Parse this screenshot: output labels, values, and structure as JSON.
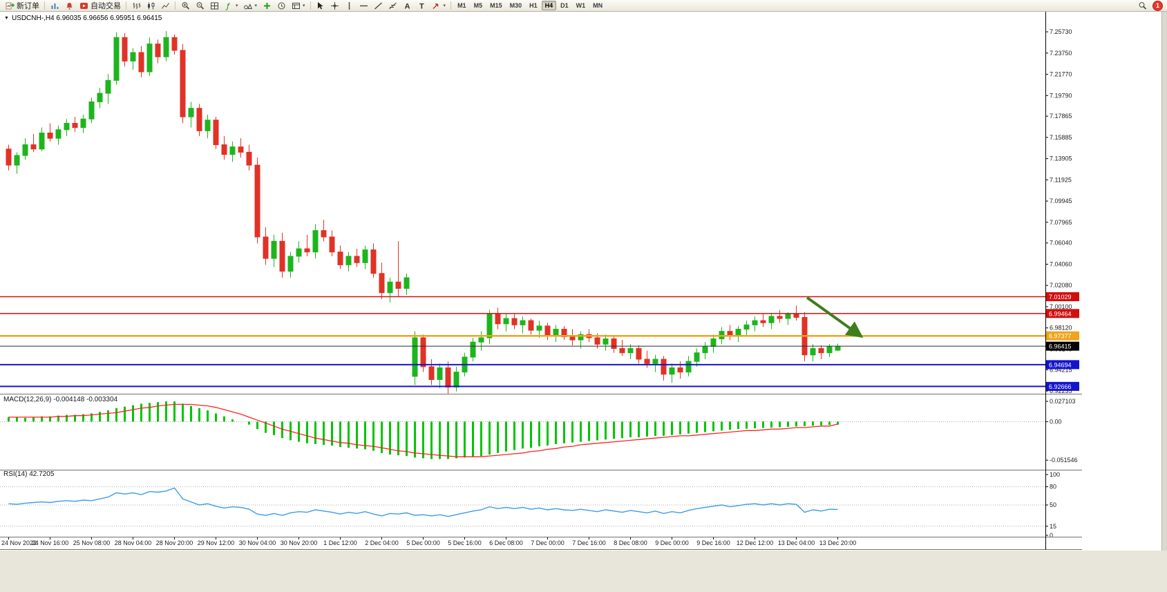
{
  "toolbar": {
    "new_order_label": "新订单",
    "auto_trading_label": "自动交易",
    "timeframes": [
      "M1",
      "M5",
      "M15",
      "M30",
      "H1",
      "H4",
      "D1",
      "W1",
      "MN"
    ],
    "active_timeframe": "H4",
    "notification_count": "1"
  },
  "chart": {
    "symbol": "USDCNH-",
    "period": "H4",
    "info_line": "USDCNH-,H4  6.96035 6.96656 6.95951 6.96415",
    "ohlc": {
      "open": "6.96035",
      "high": "6.96656",
      "low": "6.95951",
      "close": "6.96415"
    }
  },
  "colors": {
    "bull": "#1db51d",
    "bear": "#e03226",
    "macd_hist": "#00c400",
    "macd_signal": "#ff2222",
    "rsi_line": "#3d9be9",
    "hline_red": "#d20f0f",
    "hline_orange": "#efa41b",
    "hline_blue": "#1414cc",
    "price_badge_bg": "#000000",
    "arrow_green": "#3f7d1d",
    "axis_text": "#1b1b1b",
    "grid_dotted": "#a8a8a8"
  },
  "chart_data": [
    {
      "type": "candlestick",
      "title": "USDCNH-,H4",
      "label": "USDCNH-,H4  6.96035 6.96656 6.95951 6.96415",
      "ylim": [
        6.9198,
        7.2612
      ],
      "y_ticks": [
        7.2573,
        7.2375,
        7.2177,
        7.1979,
        7.17865,
        7.15885,
        7.13905,
        7.11925,
        7.09945,
        7.07965,
        7.0604,
        7.0406,
        7.0208,
        7.001,
        6.9812,
        6.9614,
        6.94215,
        6.92235
      ],
      "x_label_step": 5,
      "x_labels": [
        "24 Nov 2022",
        "24 Nov 16:00",
        "25 Nov 08:00",
        "28 Nov 04:00",
        "28 Nov 20:00",
        "29 Nov 12:00",
        "30 Nov 04:00",
        "30 Nov 20:00",
        "1 Dec 12:00",
        "2 Dec 04:00",
        "5 Dec 00:00",
        "5 Dec 16:00",
        "6 Dec 08:00",
        "7 Dec 00:00",
        "7 Dec 16:00",
        "8 Dec 08:00",
        "9 Dec 00:00",
        "9 Dec 16:00",
        "12 Dec 12:00",
        "13 Dec 04:00",
        "13 Dec 20:00"
      ],
      "hlines": [
        {
          "value": 7.01029,
          "label": "7.01029",
          "color": "#d20f0f",
          "width": 1.5
        },
        {
          "value": 6.99464,
          "label": "6.99464",
          "color": "#d20f0f",
          "width": 1.5
        },
        {
          "value": 6.97377,
          "label": "6.97377",
          "color": "#efa41b",
          "width": 2.5
        },
        {
          "value": 6.94694,
          "label": "6.94694",
          "color": "#1414cc",
          "width": 2
        },
        {
          "value": 6.92666,
          "label": "6.92666",
          "color": "#1414cc",
          "width": 2
        }
      ],
      "price_line": {
        "value": 6.96415,
        "label": "6.96415",
        "color": "#000000"
      },
      "arrow": {
        "bar_from": 96.3,
        "price_from": 7.0095,
        "bar_to": 102.8,
        "price_to": 6.9735,
        "color": "#3f7d1d",
        "width": 4
      },
      "candles": [
        [
          7.148,
          7.152,
          7.128,
          7.133
        ],
        [
          7.133,
          7.145,
          7.125,
          7.142
        ],
        [
          7.142,
          7.158,
          7.138,
          7.152
        ],
        [
          7.152,
          7.162,
          7.145,
          7.148
        ],
        [
          7.148,
          7.168,
          7.146,
          7.163
        ],
        [
          7.163,
          7.172,
          7.155,
          7.158
        ],
        [
          7.158,
          7.17,
          7.152,
          7.166
        ],
        [
          7.166,
          7.176,
          7.16,
          7.172
        ],
        [
          7.172,
          7.178,
          7.164,
          7.168
        ],
        [
          7.168,
          7.18,
          7.163,
          7.176
        ],
        [
          7.176,
          7.196,
          7.172,
          7.192
        ],
        [
          7.192,
          7.205,
          7.186,
          7.2
        ],
        [
          7.2,
          7.218,
          7.19,
          7.212
        ],
        [
          7.212,
          7.257,
          7.208,
          7.252
        ],
        [
          7.252,
          7.256,
          7.225,
          7.23
        ],
        [
          7.23,
          7.242,
          7.222,
          7.238
        ],
        [
          7.238,
          7.244,
          7.215,
          7.22
        ],
        [
          7.22,
          7.252,
          7.216,
          7.246
        ],
        [
          7.246,
          7.25,
          7.228,
          7.234
        ],
        [
          7.234,
          7.258,
          7.23,
          7.252
        ],
        [
          7.252,
          7.255,
          7.236,
          7.24
        ],
        [
          7.24,
          7.246,
          7.172,
          7.178
        ],
        [
          7.178,
          7.192,
          7.168,
          7.186
        ],
        [
          7.186,
          7.19,
          7.16,
          7.165
        ],
        [
          7.165,
          7.18,
          7.158,
          7.175
        ],
        [
          7.175,
          7.178,
          7.148,
          7.152
        ],
        [
          7.152,
          7.16,
          7.138,
          7.143
        ],
        [
          7.143,
          7.155,
          7.136,
          7.15
        ],
        [
          7.15,
          7.158,
          7.14,
          7.145
        ],
        [
          7.145,
          7.152,
          7.128,
          7.133
        ],
        [
          7.133,
          7.14,
          7.06,
          7.066
        ],
        [
          7.066,
          7.075,
          7.04,
          7.046
        ],
        [
          7.046,
          7.068,
          7.038,
          7.062
        ],
        [
          7.062,
          7.07,
          7.028,
          7.034
        ],
        [
          7.034,
          7.052,
          7.028,
          7.048
        ],
        [
          7.048,
          7.062,
          7.042,
          7.055
        ],
        [
          7.055,
          7.068,
          7.048,
          7.052
        ],
        [
          7.052,
          7.078,
          7.046,
          7.072
        ],
        [
          7.072,
          7.082,
          7.062,
          7.066
        ],
        [
          7.066,
          7.072,
          7.048,
          7.052
        ],
        [
          7.052,
          7.058,
          7.036,
          7.04
        ],
        [
          7.04,
          7.052,
          7.034,
          7.048
        ],
        [
          7.048,
          7.055,
          7.038,
          7.042
        ],
        [
          7.042,
          7.058,
          7.036,
          7.054
        ],
        [
          7.054,
          7.06,
          7.028,
          7.032
        ],
        [
          7.032,
          7.042,
          7.008,
          7.014
        ],
        [
          7.014,
          7.028,
          7.005,
          7.024
        ],
        [
          7.024,
          7.062,
          7.01,
          7.018
        ],
        [
          7.018,
          7.032,
          7.012,
          7.028
        ],
        [
          6.936,
          6.978,
          6.928,
          6.972
        ],
        [
          6.972,
          6.975,
          6.94,
          6.945
        ],
        [
          6.945,
          6.952,
          6.928,
          6.933
        ],
        [
          6.933,
          6.948,
          6.925,
          6.944
        ],
        [
          6.944,
          6.95,
          6.92,
          6.926
        ],
        [
          6.926,
          6.945,
          6.922,
          6.94
        ],
        [
          6.94,
          6.958,
          6.936,
          6.954
        ],
        [
          6.954,
          6.972,
          6.95,
          6.968
        ],
        [
          6.968,
          6.978,
          6.96,
          6.972
        ],
        [
          6.972,
          6.998,
          6.966,
          6.994
        ],
        [
          6.994,
          7.0,
          6.98,
          6.985
        ],
        [
          6.985,
          6.995,
          6.978,
          6.99
        ],
        [
          6.99,
          6.994,
          6.98,
          6.984
        ],
        [
          6.984,
          6.992,
          6.976,
          6.988
        ],
        [
          6.988,
          6.99,
          6.975,
          6.979
        ],
        [
          6.979,
          6.988,
          6.972,
          6.983
        ],
        [
          6.983,
          6.986,
          6.97,
          6.974
        ],
        [
          6.974,
          6.984,
          6.968,
          6.98
        ],
        [
          6.98,
          6.983,
          6.97,
          6.973
        ],
        [
          6.973,
          6.98,
          6.965,
          6.97
        ],
        [
          6.97,
          6.978,
          6.962,
          6.975
        ],
        [
          6.975,
          6.98,
          6.968,
          6.972
        ],
        [
          6.972,
          6.976,
          6.962,
          6.966
        ],
        [
          6.966,
          6.975,
          6.96,
          6.971
        ],
        [
          6.971,
          6.974,
          6.958,
          6.962
        ],
        [
          6.962,
          6.97,
          6.955,
          6.958
        ],
        [
          6.958,
          6.966,
          6.952,
          6.962
        ],
        [
          6.962,
          6.965,
          6.948,
          6.952
        ],
        [
          6.952,
          6.96,
          6.944,
          6.948
        ],
        [
          6.948,
          6.956,
          6.94,
          6.952
        ],
        [
          6.952,
          6.955,
          6.932,
          6.938
        ],
        [
          6.938,
          6.948,
          6.93,
          6.944
        ],
        [
          6.944,
          6.95,
          6.934,
          6.94
        ],
        [
          6.94,
          6.955,
          6.936,
          6.95
        ],
        [
          6.95,
          6.962,
          6.945,
          6.958
        ],
        [
          6.958,
          6.968,
          6.952,
          6.964
        ],
        [
          6.964,
          6.975,
          6.958,
          6.971
        ],
        [
          6.971,
          6.982,
          6.966,
          6.978
        ],
        [
          6.978,
          6.984,
          6.97,
          6.974
        ],
        [
          6.974,
          6.983,
          6.968,
          6.98
        ],
        [
          6.98,
          6.988,
          6.974,
          6.984
        ],
        [
          6.984,
          6.992,
          6.978,
          6.988
        ],
        [
          6.988,
          6.994,
          6.982,
          6.986
        ],
        [
          6.986,
          6.995,
          6.98,
          6.992
        ],
        [
          6.992,
          6.998,
          6.986,
          6.99
        ],
        [
          6.99,
          6.996,
          6.984,
          6.994
        ],
        [
          6.994,
          7.002,
          6.988,
          6.991
        ],
        [
          6.991,
          6.996,
          6.95,
          6.956
        ],
        [
          6.956,
          6.966,
          6.95,
          6.962
        ],
        [
          6.962,
          6.965,
          6.952,
          6.958
        ],
        [
          6.958,
          6.966,
          6.954,
          6.964
        ],
        [
          6.96035,
          6.96656,
          6.95951,
          6.96415
        ]
      ]
    },
    {
      "type": "bar",
      "title": "MACD(12,26,9)",
      "label": "MACD(12,26,9) -0.004148 -0.003304",
      "current_values": [
        "-0.004148",
        "-0.003304"
      ],
      "ylim": [
        -0.0625,
        0.0345
      ],
      "y_ticks": [
        0.027103,
        0,
        -0.051546
      ],
      "y_tick_labels": [
        "0.027103",
        "0.00",
        "-0.051546"
      ],
      "series": [
        {
          "name": "macd-histogram",
          "color": "#00c400",
          "values": [
            0.006,
            0.006,
            0.005,
            0.006,
            0.007,
            0.007,
            0.008,
            0.009,
            0.009,
            0.01,
            0.011,
            0.013,
            0.015,
            0.018,
            0.02,
            0.022,
            0.024,
            0.025,
            0.026,
            0.027,
            0.027,
            0.024,
            0.021,
            0.018,
            0.015,
            0.011,
            0.007,
            0.003,
            0.0,
            -0.004,
            -0.01,
            -0.015,
            -0.018,
            -0.022,
            -0.025,
            -0.027,
            -0.029,
            -0.03,
            -0.031,
            -0.032,
            -0.034,
            -0.035,
            -0.036,
            -0.037,
            -0.039,
            -0.042,
            -0.044,
            -0.045,
            -0.046,
            -0.048,
            -0.049,
            -0.05,
            -0.05,
            -0.05,
            -0.049,
            -0.048,
            -0.047,
            -0.046,
            -0.044,
            -0.042,
            -0.04,
            -0.038,
            -0.036,
            -0.035,
            -0.033,
            -0.032,
            -0.03,
            -0.029,
            -0.028,
            -0.027,
            -0.026,
            -0.025,
            -0.024,
            -0.023,
            -0.022,
            -0.021,
            -0.021,
            -0.02,
            -0.019,
            -0.019,
            -0.018,
            -0.017,
            -0.016,
            -0.015,
            -0.014,
            -0.013,
            -0.012,
            -0.011,
            -0.01,
            -0.0095,
            -0.009,
            -0.0085,
            -0.008,
            -0.0075,
            -0.007,
            -0.0065,
            -0.006,
            -0.0055,
            -0.005,
            -0.0045,
            -0.004148
          ]
        },
        {
          "name": "signal-line",
          "color": "#ff2222",
          "values": [
            0.006,
            0.006,
            0.006,
            0.006,
            0.006,
            0.006,
            0.007,
            0.007,
            0.008,
            0.008,
            0.009,
            0.01,
            0.011,
            0.012,
            0.014,
            0.016,
            0.018,
            0.019,
            0.021,
            0.022,
            0.023,
            0.023,
            0.023,
            0.022,
            0.021,
            0.019,
            0.016,
            0.013,
            0.01,
            0.006,
            0.002,
            -0.002,
            -0.006,
            -0.01,
            -0.013,
            -0.016,
            -0.019,
            -0.022,
            -0.024,
            -0.026,
            -0.028,
            -0.029,
            -0.031,
            -0.032,
            -0.033,
            -0.035,
            -0.037,
            -0.039,
            -0.04,
            -0.042,
            -0.043,
            -0.044,
            -0.045,
            -0.046,
            -0.047,
            -0.047,
            -0.047,
            -0.047,
            -0.046,
            -0.045,
            -0.044,
            -0.043,
            -0.042,
            -0.04,
            -0.039,
            -0.037,
            -0.036,
            -0.034,
            -0.033,
            -0.031,
            -0.03,
            -0.029,
            -0.028,
            -0.027,
            -0.026,
            -0.025,
            -0.024,
            -0.023,
            -0.022,
            -0.021,
            -0.02,
            -0.019,
            -0.019,
            -0.018,
            -0.017,
            -0.016,
            -0.015,
            -0.014,
            -0.013,
            -0.012,
            -0.012,
            -0.011,
            -0.01,
            -0.01,
            -0.009,
            -0.008,
            -0.008,
            -0.007,
            -0.006,
            -0.006,
            -0.003304
          ]
        }
      ]
    },
    {
      "type": "line",
      "title": "RSI(14)",
      "label": "RSI(14) 42.7205",
      "current_value": "42.7205",
      "ylim": [
        0,
        100
      ],
      "y_ticks": [
        100,
        80,
        50,
        15,
        0
      ],
      "levels": [
        80,
        50,
        15
      ],
      "color": "#3d9be9",
      "values": [
        52,
        51,
        53,
        54,
        55,
        54,
        56,
        57,
        56,
        58,
        57,
        60,
        63,
        70,
        68,
        70,
        67,
        72,
        71,
        73,
        78,
        60,
        55,
        50,
        52,
        48,
        45,
        47,
        46,
        43,
        35,
        33,
        36,
        33,
        37,
        39,
        38,
        42,
        40,
        38,
        35,
        38,
        36,
        39,
        35,
        32,
        36,
        35,
        37,
        33,
        34,
        32,
        34,
        31,
        34,
        37,
        40,
        42,
        47,
        44,
        46,
        44,
        46,
        43,
        45,
        42,
        44,
        42,
        41,
        43,
        41,
        39,
        42,
        40,
        38,
        41,
        39,
        37,
        40,
        36,
        39,
        37,
        41,
        44,
        46,
        48,
        50,
        47,
        49,
        51,
        52,
        50,
        52,
        50,
        52,
        51,
        38,
        42,
        40,
        43,
        42.7205
      ]
    }
  ]
}
